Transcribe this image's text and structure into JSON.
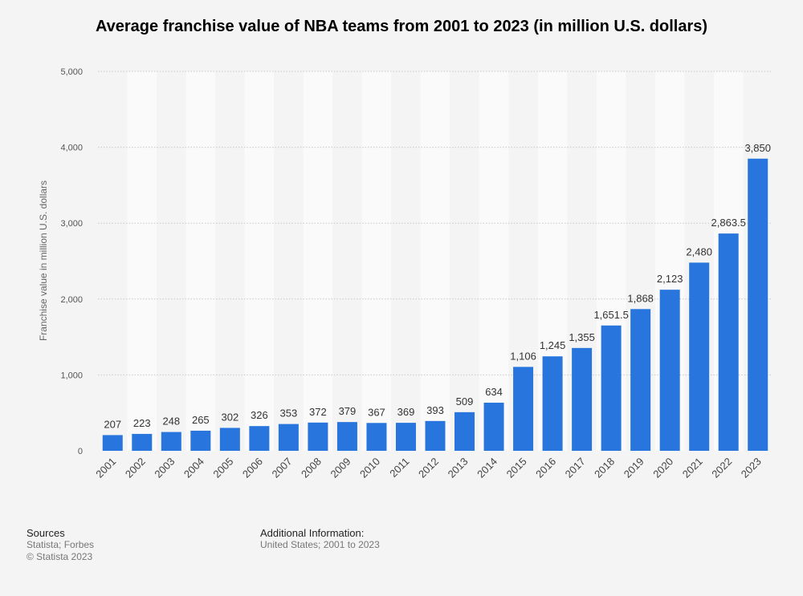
{
  "chart_data": {
    "type": "bar",
    "title": "Average franchise value of NBA teams from 2001 to 2023 (in million U.S. dollars)",
    "ylabel": "Franchise value in million U.S. dollars",
    "xlabel": "",
    "ylim": [
      0,
      5000
    ],
    "yticks": [
      0,
      1000,
      2000,
      3000,
      4000,
      5000
    ],
    "ytick_labels": [
      "0",
      "1,000",
      "2,000",
      "3,000",
      "4,000",
      "5,000"
    ],
    "grid": true,
    "categories": [
      "2001",
      "2002",
      "2003",
      "2004",
      "2005",
      "2006",
      "2007",
      "2008",
      "2009",
      "2010",
      "2011",
      "2012",
      "2013",
      "2014",
      "2015",
      "2016",
      "2017",
      "2018",
      "2019",
      "2020",
      "2021",
      "2022",
      "2023"
    ],
    "values": [
      207,
      223,
      248,
      265,
      302,
      326,
      353,
      372,
      379,
      367,
      369,
      393,
      509,
      634,
      1106,
      1245,
      1355,
      1651.5,
      1868,
      2123,
      2480,
      2863.5,
      3850
    ],
    "value_labels": [
      "207",
      "223",
      "248",
      "265",
      "302",
      "326",
      "353",
      "372",
      "379",
      "367",
      "369",
      "393",
      "509",
      "634",
      "1,106",
      "1,245",
      "1,355",
      "1,651.5",
      "1,868",
      "2,123",
      "2,480",
      "2,863.5",
      "3,850"
    ],
    "bar_color": "#2876dd"
  },
  "footer": {
    "sources_heading": "Sources",
    "sources_line1": "Statista; Forbes",
    "sources_line2": "© Statista 2023",
    "info_heading": "Additional Information:",
    "info_line1": "United States; 2001 to 2023"
  }
}
